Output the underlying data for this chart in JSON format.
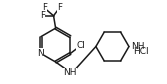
{
  "bg_color": "#ffffff",
  "bond_color": "#1a1a1a",
  "atom_color": "#1a1a1a",
  "bond_width": 1.1,
  "font_size": 6.5,
  "fig_width": 1.67,
  "fig_height": 0.84,
  "dpi": 100,
  "xlim": [
    0.2,
    8.2
  ],
  "ylim": [
    0.5,
    4.5
  ]
}
